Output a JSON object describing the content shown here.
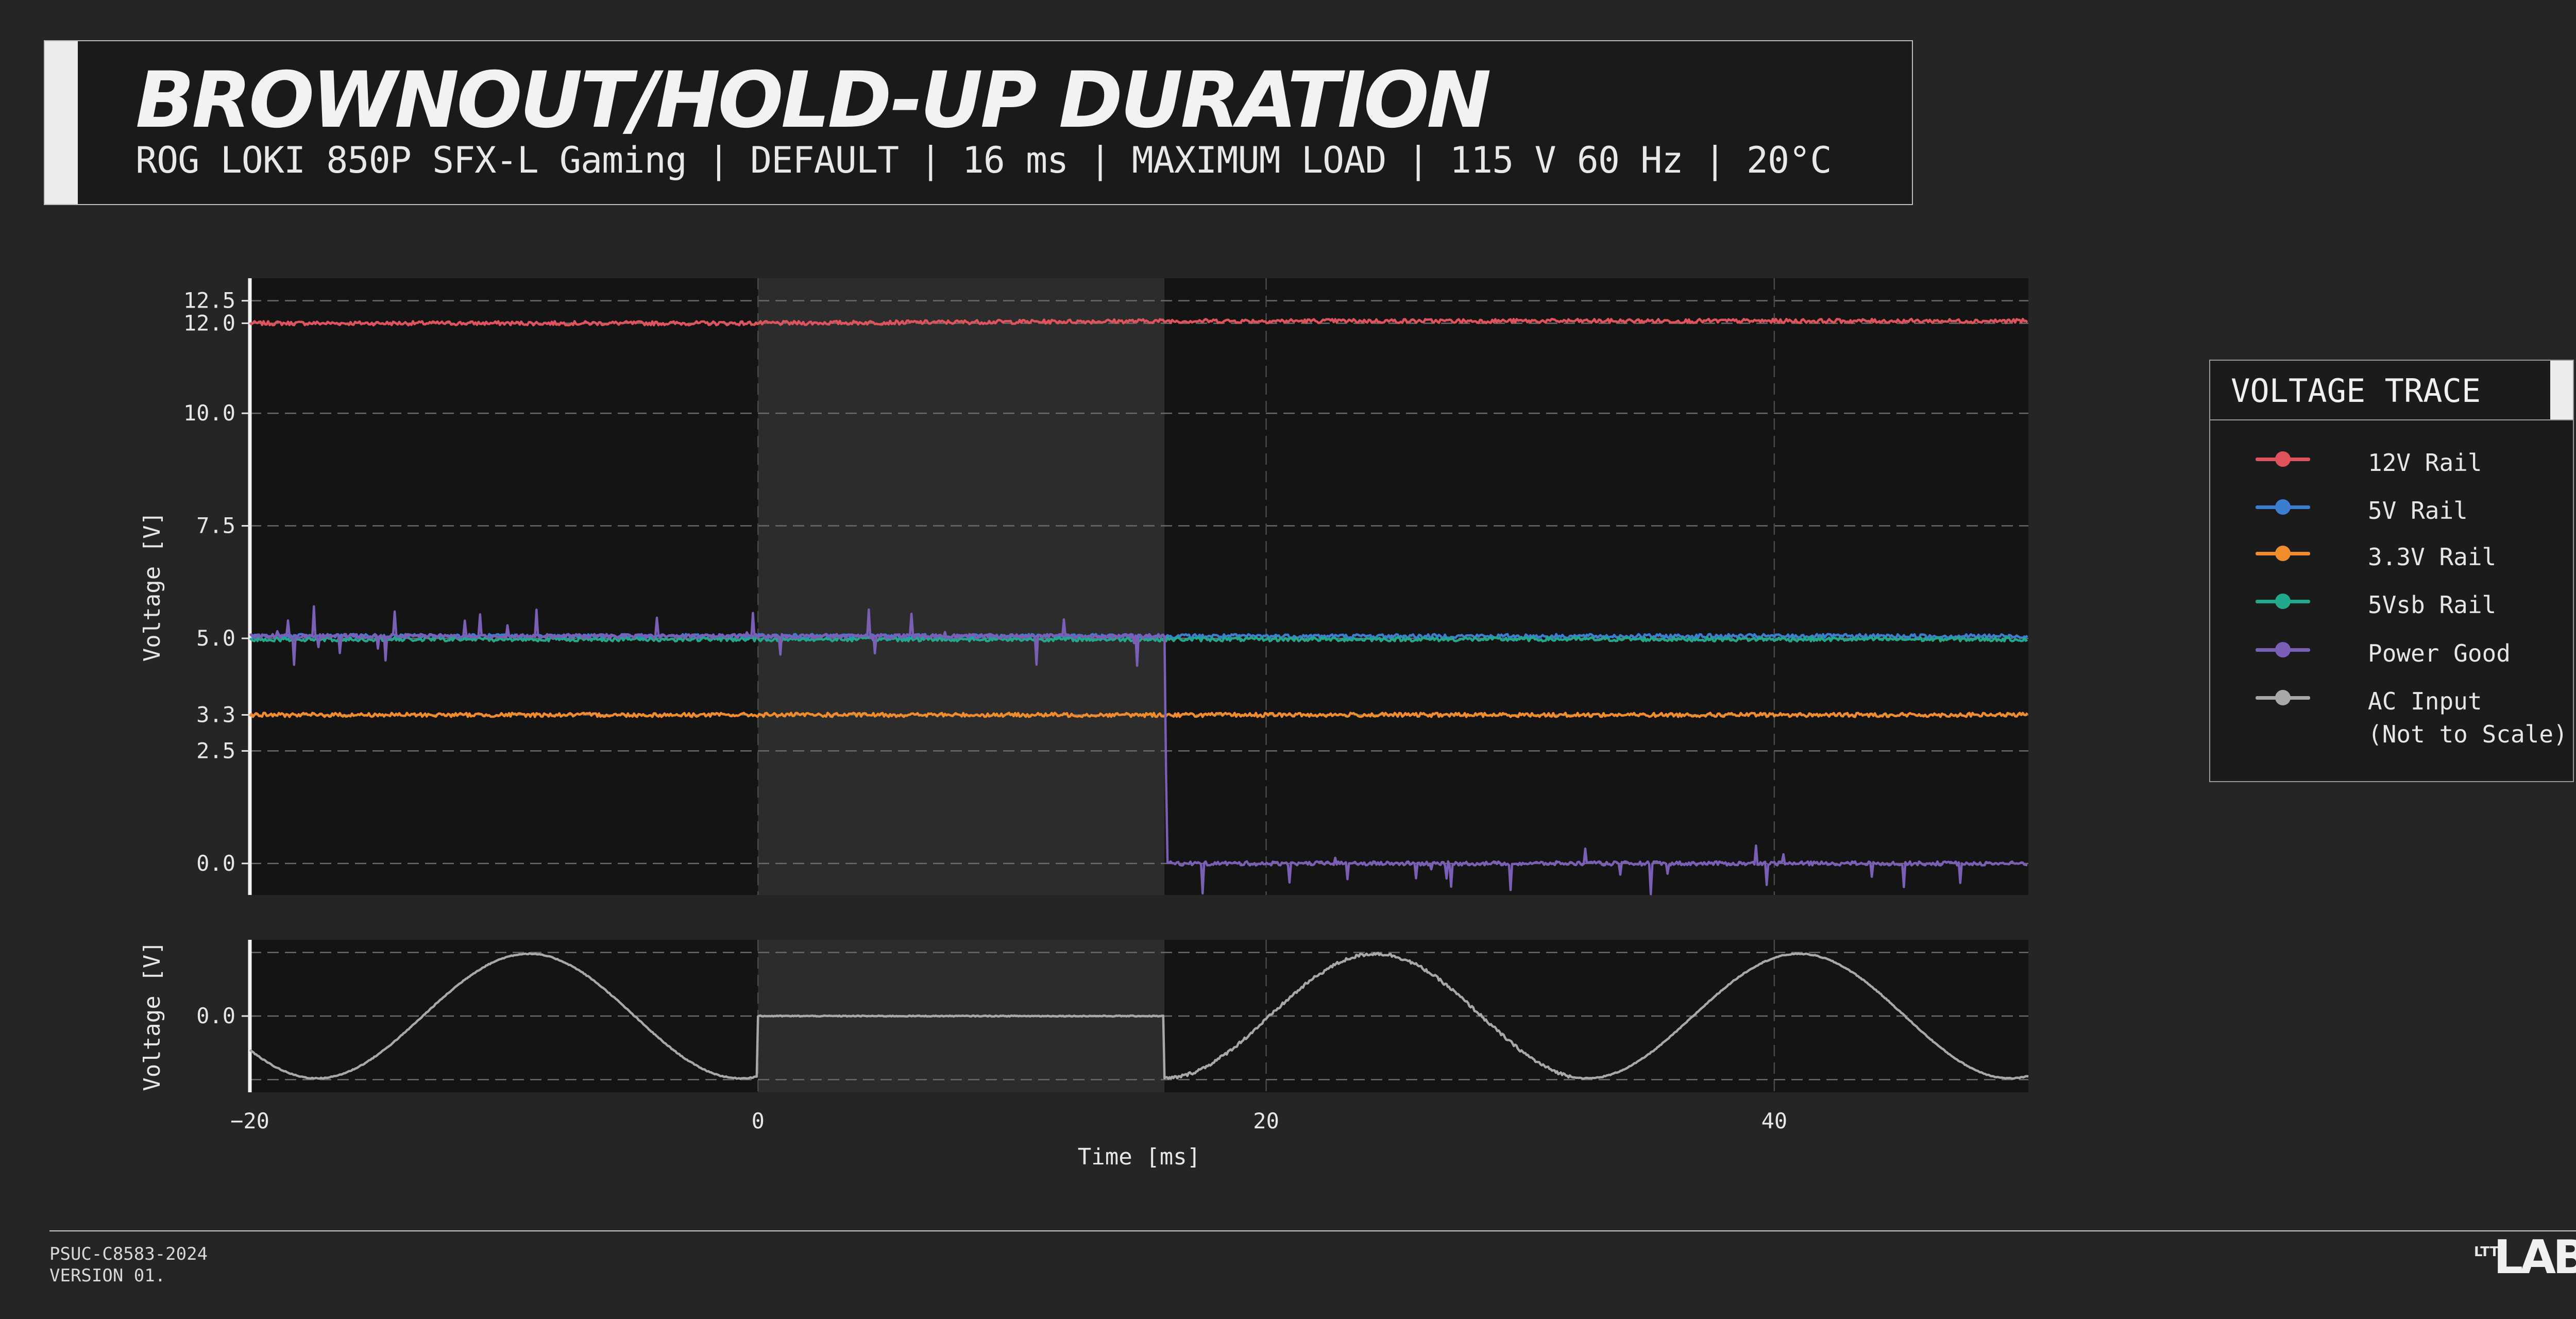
{
  "header": {
    "title": "BROWNOUT/HOLD-UP DURATION",
    "subtitle": "ROG LOKI 850P SFX-L Gaming | DEFAULT | 16 ms | MAXIMUM LOAD | 115 V 60 Hz | 20°C"
  },
  "legend": {
    "title": "VOLTAGE TRACE",
    "items": [
      {
        "label": "12V Rail",
        "color": "#e0525c"
      },
      {
        "label": "5V Rail",
        "color": "#3c7dd0"
      },
      {
        "label": "3.3V Rail",
        "color": "#f08c2a"
      },
      {
        "label": "5Vsb Rail",
        "color": "#22a88a"
      },
      {
        "label": "Power Good",
        "color": "#7b5fb6"
      },
      {
        "label": "AC Input\n(Not to Scale)",
        "color": "#a8a8a8"
      }
    ]
  },
  "footer": {
    "doc_id": "PSUC-C8583-2024",
    "version": "VERSION 01.",
    "logo_mark": "LTT",
    "logo_text": "LABS"
  },
  "chart_data": {
    "type": "line",
    "xlabel": "Time [ms]",
    "xlim": [
      -20,
      50
    ],
    "x_ticks": [
      -20,
      0,
      20,
      40
    ],
    "shaded_interval": [
      0,
      16
    ],
    "grid": true,
    "panels": [
      {
        "name": "rails",
        "ylabel": "Voltage [V]",
        "ylim": [
          -0.7,
          13.0
        ],
        "y_ticks": [
          0.0,
          2.5,
          3.3,
          5.0,
          7.5,
          10.0,
          12.0,
          12.5
        ],
        "y_tick_labels": [
          "0.0",
          "2.5",
          "3.3",
          "5.0",
          "7.5",
          "10.0",
          "12.0",
          "12.5"
        ],
        "series": [
          {
            "name": "12V Rail",
            "color": "#e0525c",
            "x": [
              -20,
              0,
              16,
              50
            ],
            "y": [
              12.0,
              12.0,
              12.05,
              12.05
            ]
          },
          {
            "name": "5V Rail",
            "color": "#3c7dd0",
            "x": [
              -20,
              0,
              16,
              50
            ],
            "y": [
              5.05,
              5.05,
              5.05,
              5.05
            ]
          },
          {
            "name": "3.3V Rail",
            "color": "#f08c2a",
            "x": [
              -20,
              0,
              16,
              50
            ],
            "y": [
              3.3,
              3.3,
              3.3,
              3.3
            ]
          },
          {
            "name": "5Vsb Rail",
            "color": "#22a88a",
            "x": [
              -20,
              0,
              16,
              50
            ],
            "y": [
              4.98,
              4.98,
              4.98,
              4.98
            ]
          },
          {
            "name": "Power Good",
            "color": "#7b5fb6",
            "x": [
              -20,
              0,
              16,
              16.1,
              50
            ],
            "y": [
              5.05,
              5.05,
              5.05,
              0.0,
              0.0
            ]
          }
        ]
      },
      {
        "name": "ac-input",
        "ylabel": "Voltage [V]",
        "ylim": [
          -1.2,
          1.2
        ],
        "y_ticks": [
          0.0
        ],
        "y_tick_labels": [
          "0.0"
        ],
        "series": [
          {
            "name": "AC Input",
            "color": "#a8a8a8",
            "frequency_hz": 60,
            "amplitude": 1.0,
            "dropout": [
              0,
              16
            ]
          }
        ]
      }
    ]
  }
}
